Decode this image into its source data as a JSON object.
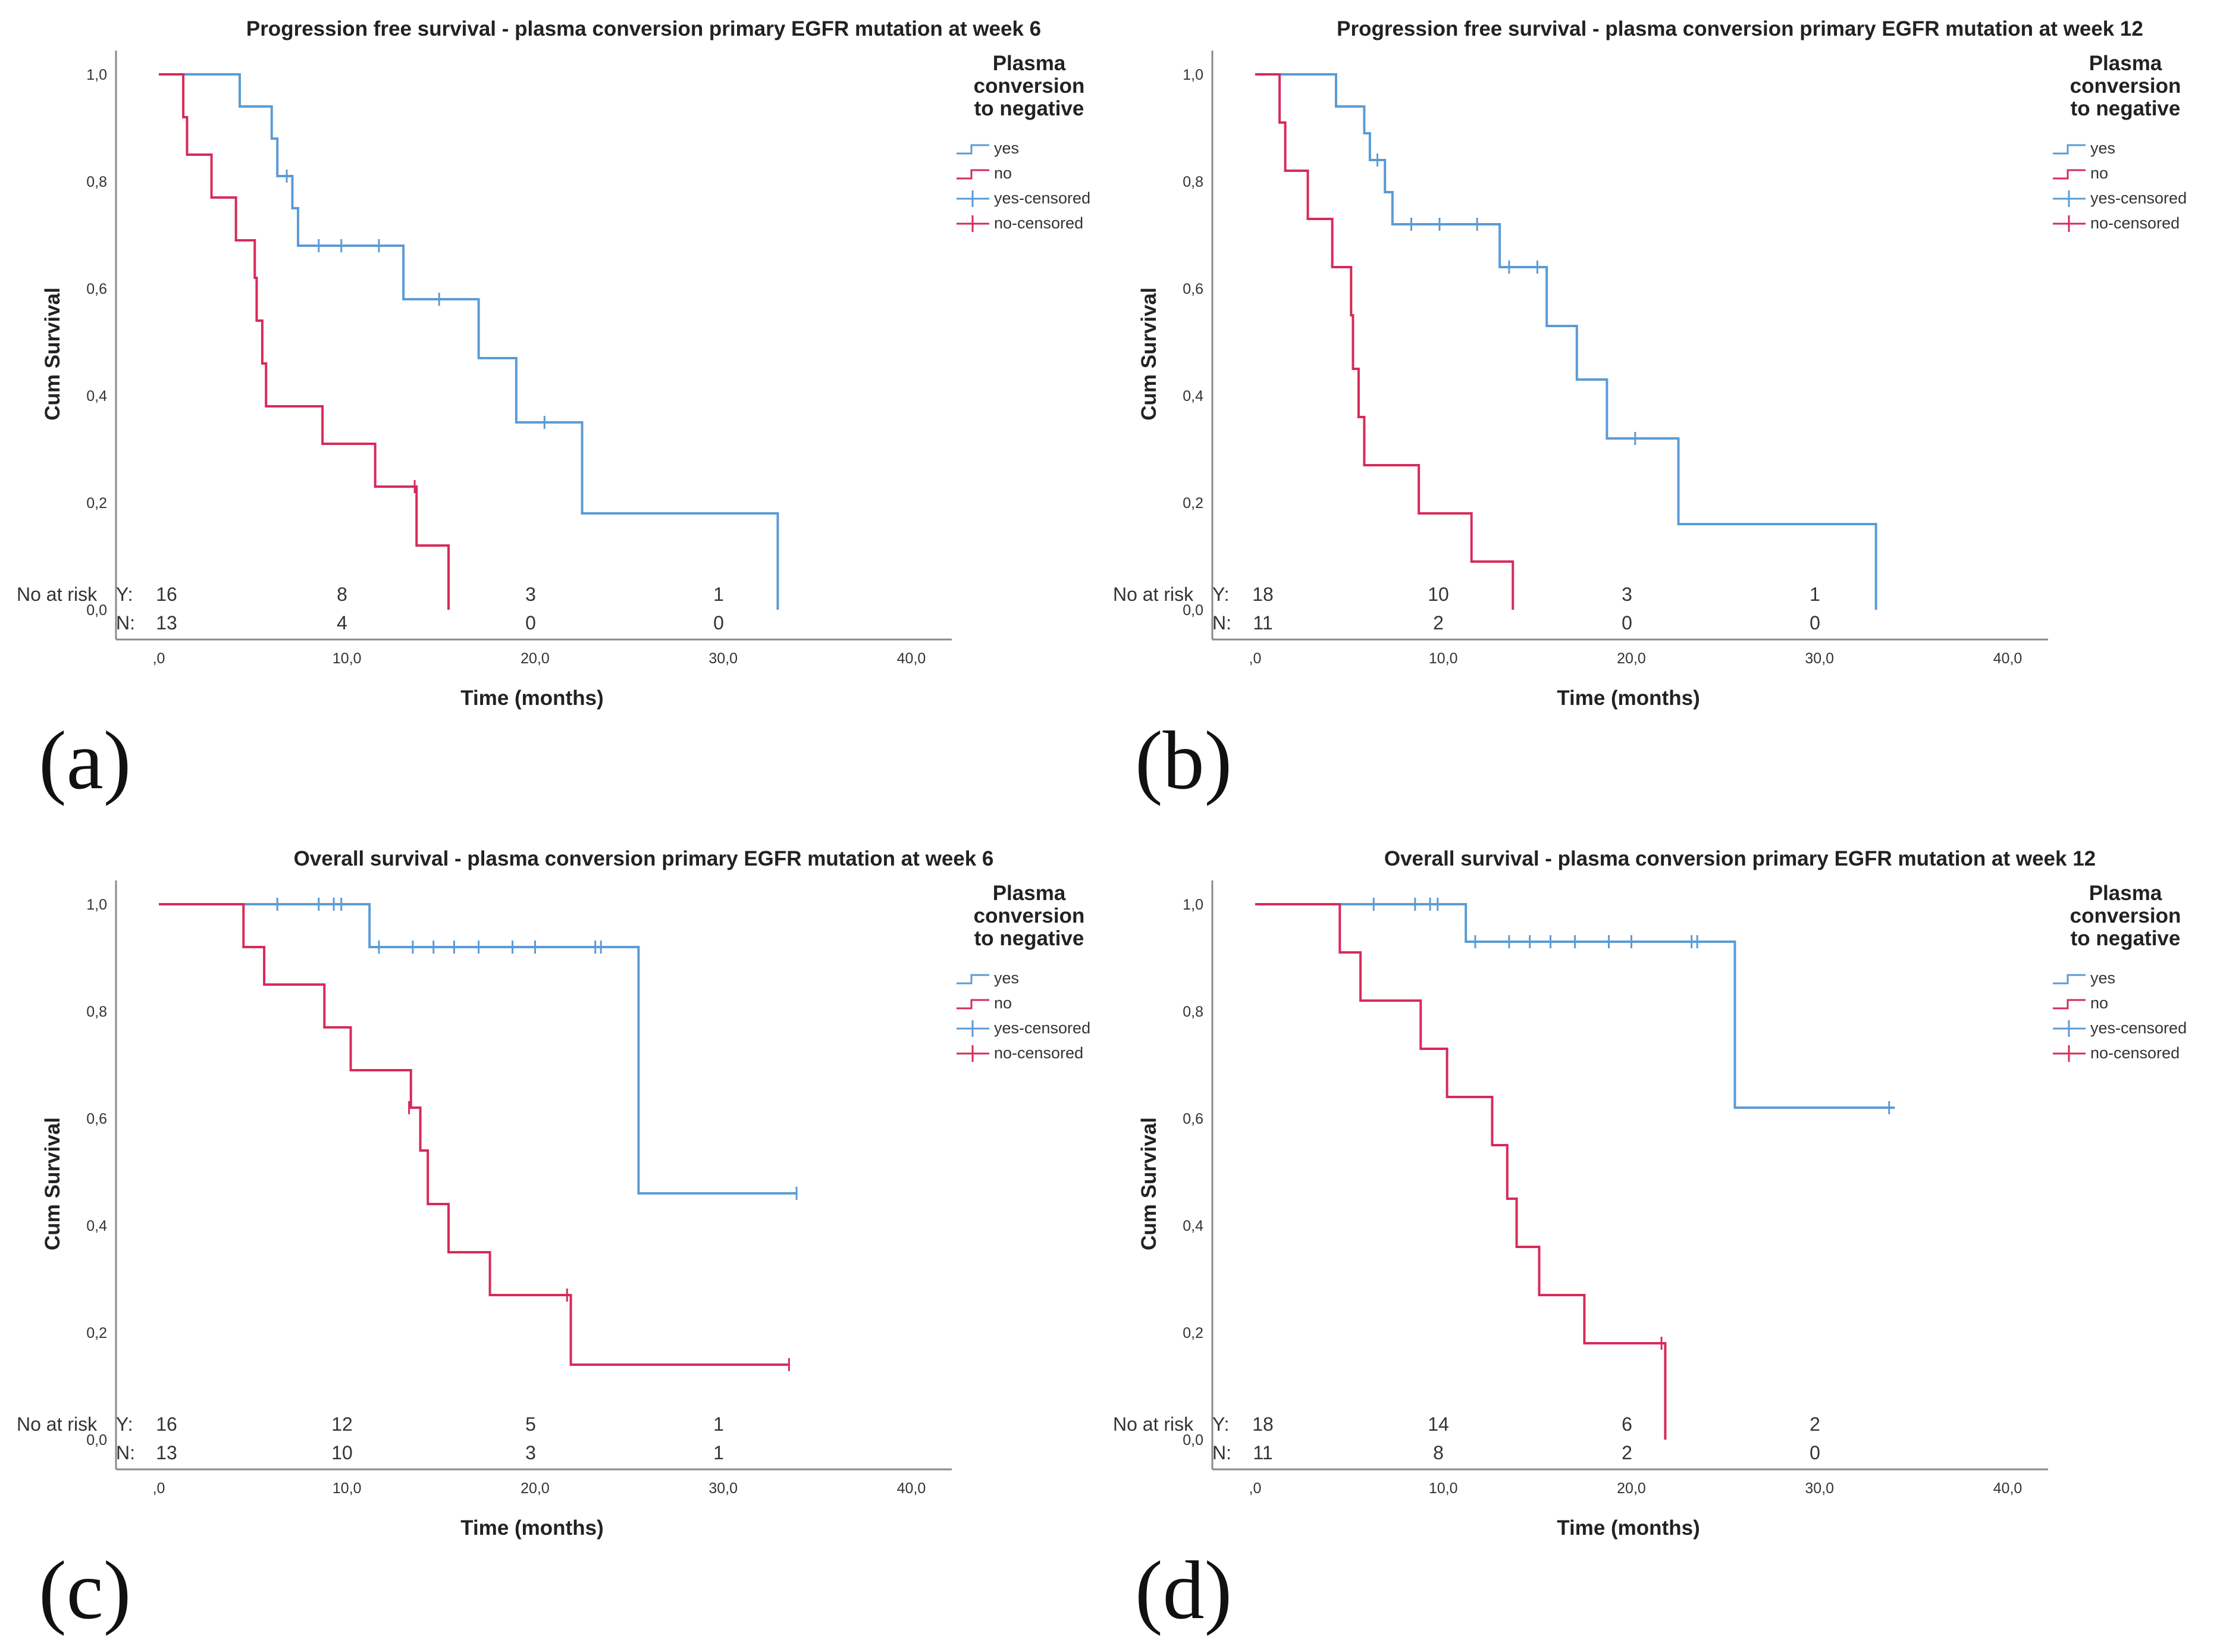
{
  "colors": {
    "yes": "#5b9bd5",
    "no": "#d62b5a",
    "axis": "#8a8a8a",
    "text": "#222222"
  },
  "legend": {
    "title_lines": [
      "Plasma",
      "conversion",
      "to negative"
    ],
    "items": [
      "yes",
      "no",
      "yes-censored",
      "no-censored"
    ]
  },
  "chart_data": [
    {
      "type": "line",
      "label": "(a)",
      "title": "Progression free survival - plasma conversion primary EGFR mutation at week 6",
      "xlabel": "Time (months)",
      "ylabel": "Cum Survival",
      "xlim": [
        0,
        40
      ],
      "ylim": [
        0,
        1
      ],
      "x_ticks": [
        ",0",
        "10,0",
        "20,0",
        "30,0",
        "40,0"
      ],
      "y_ticks": [
        "0,0",
        "0,2",
        "0,4",
        "0,6",
        "0,8",
        "1,0"
      ],
      "series": [
        {
          "name": "yes",
          "steps": [
            [
              0,
              1.0
            ],
            [
              4.3,
              0.94
            ],
            [
              6.0,
              0.88
            ],
            [
              6.3,
              0.81
            ],
            [
              7.1,
              0.75
            ],
            [
              7.4,
              0.68
            ],
            [
              13.0,
              0.58
            ],
            [
              17.0,
              0.47
            ],
            [
              19.0,
              0.35
            ],
            [
              22.5,
              0.18
            ],
            [
              32.9,
              0.0
            ]
          ],
          "end_x": 32.9,
          "censored": [
            [
              6.8,
              0.81
            ],
            [
              8.5,
              0.68
            ],
            [
              9.7,
              0.68
            ],
            [
              11.7,
              0.68
            ],
            [
              14.9,
              0.58
            ],
            [
              20.5,
              0.35
            ]
          ]
        },
        {
          "name": "no",
          "steps": [
            [
              0,
              1.0
            ],
            [
              1.3,
              0.92
            ],
            [
              1.5,
              0.85
            ],
            [
              2.8,
              0.77
            ],
            [
              4.1,
              0.69
            ],
            [
              5.1,
              0.62
            ],
            [
              5.2,
              0.54
            ],
            [
              5.5,
              0.46
            ],
            [
              5.7,
              0.38
            ],
            [
              8.7,
              0.31
            ],
            [
              11.5,
              0.23
            ],
            [
              13.7,
              0.12
            ],
            [
              15.4,
              0.0
            ]
          ],
          "end_x": 15.4,
          "censored": [
            [
              13.6,
              0.23
            ]
          ]
        }
      ],
      "risk_table": {
        "header": "No at risk",
        "rows": [
          {
            "label": "Y:",
            "values": [
              "16",
              "8",
              "3",
              "1"
            ]
          },
          {
            "label": "N:",
            "values": [
              "13",
              "4",
              "0",
              "0"
            ]
          }
        ]
      }
    },
    {
      "type": "line",
      "label": "(b)",
      "title": "Progression free survival - plasma conversion primary EGFR mutation at week 12",
      "xlabel": "Time (months)",
      "ylabel": "Cum Survival",
      "xlim": [
        0,
        40
      ],
      "ylim": [
        0,
        1
      ],
      "x_ticks": [
        ",0",
        "10,0",
        "20,0",
        "30,0",
        "40,0"
      ],
      "y_ticks": [
        "0,0",
        "0,2",
        "0,4",
        "0,6",
        "0,8",
        "1,0"
      ],
      "series": [
        {
          "name": "yes",
          "steps": [
            [
              0,
              1.0
            ],
            [
              4.3,
              0.94
            ],
            [
              5.8,
              0.89
            ],
            [
              6.1,
              0.84
            ],
            [
              6.9,
              0.78
            ],
            [
              7.3,
              0.72
            ],
            [
              13.0,
              0.64
            ],
            [
              15.5,
              0.53
            ],
            [
              17.1,
              0.43
            ],
            [
              18.7,
              0.32
            ],
            [
              22.5,
              0.16
            ],
            [
              33.0,
              0.0
            ]
          ],
          "end_x": 33.0,
          "censored": [
            [
              6.5,
              0.84
            ],
            [
              8.3,
              0.72
            ],
            [
              9.8,
              0.72
            ],
            [
              11.8,
              0.72
            ],
            [
              13.5,
              0.64
            ],
            [
              15.0,
              0.64
            ],
            [
              20.2,
              0.32
            ]
          ]
        },
        {
          "name": "no",
          "steps": [
            [
              0,
              1.0
            ],
            [
              1.3,
              0.91
            ],
            [
              1.6,
              0.82
            ],
            [
              2.8,
              0.73
            ],
            [
              4.1,
              0.64
            ],
            [
              5.1,
              0.55
            ],
            [
              5.2,
              0.45
            ],
            [
              5.5,
              0.36
            ],
            [
              5.8,
              0.27
            ],
            [
              8.7,
              0.18
            ],
            [
              11.5,
              0.09
            ],
            [
              13.7,
              0.0
            ]
          ],
          "end_x": 13.7,
          "censored": []
        }
      ],
      "risk_table": {
        "header": "No at risk",
        "rows": [
          {
            "label": "Y:",
            "values": [
              "18",
              "10",
              "3",
              "1"
            ]
          },
          {
            "label": "N:",
            "values": [
              "11",
              "2",
              "0",
              "0"
            ]
          }
        ]
      }
    },
    {
      "type": "line",
      "label": "(c)",
      "title": "Overall survival - plasma conversion primary EGFR mutation at week 6",
      "xlabel": "Time (months)",
      "ylabel": "Cum Survival",
      "xlim": [
        0,
        40
      ],
      "ylim": [
        0,
        1
      ],
      "x_ticks": [
        ",0",
        "10,0",
        "20,0",
        "30,0",
        "40,0"
      ],
      "y_ticks": [
        "0,0",
        "0,2",
        "0,4",
        "0,6",
        "0,8",
        "1,0"
      ],
      "series": [
        {
          "name": "yes",
          "steps": [
            [
              0,
              1.0
            ],
            [
              11.2,
              0.92
            ],
            [
              25.5,
              0.46
            ]
          ],
          "end_x": 33.9,
          "censored": [
            [
              6.3,
              1.0
            ],
            [
              8.5,
              1.0
            ],
            [
              9.3,
              1.0
            ],
            [
              9.7,
              1.0
            ],
            [
              11.7,
              0.92
            ],
            [
              13.5,
              0.92
            ],
            [
              14.6,
              0.92
            ],
            [
              15.7,
              0.92
            ],
            [
              17.0,
              0.92
            ],
            [
              18.8,
              0.92
            ],
            [
              20.0,
              0.92
            ],
            [
              23.2,
              0.92
            ],
            [
              23.5,
              0.92
            ],
            [
              33.9,
              0.46
            ]
          ]
        },
        {
          "name": "no",
          "steps": [
            [
              0,
              1.0
            ],
            [
              4.5,
              0.92
            ],
            [
              5.6,
              0.85
            ],
            [
              8.8,
              0.77
            ],
            [
              10.2,
              0.69
            ],
            [
              13.4,
              0.62
            ],
            [
              13.9,
              0.54
            ],
            [
              14.3,
              0.44
            ],
            [
              15.4,
              0.35
            ],
            [
              17.6,
              0.27
            ],
            [
              21.9,
              0.14
            ]
          ],
          "end_x": 33.5,
          "censored": [
            [
              13.3,
              0.62
            ],
            [
              21.7,
              0.27
            ],
            [
              33.5,
              0.14
            ]
          ]
        }
      ],
      "risk_table": {
        "header": "No at risk",
        "rows": [
          {
            "label": "Y:",
            "values": [
              "16",
              "12",
              "5",
              "1"
            ]
          },
          {
            "label": "N:",
            "values": [
              "13",
              "10",
              "3",
              "1"
            ]
          }
        ]
      }
    },
    {
      "type": "line",
      "label": "(d)",
      "title": "Overall survival  - plasma conversion primary EGFR mutation at week 12",
      "xlabel": "Time (months)",
      "ylabel": "Cum Survival",
      "xlim": [
        0,
        40
      ],
      "ylim": [
        0,
        1
      ],
      "x_ticks": [
        ",0",
        "10,0",
        "20,0",
        "30,0",
        "40,0"
      ],
      "y_ticks": [
        "0,0",
        "0,2",
        "0,4",
        "0,6",
        "0,8",
        "1,0"
      ],
      "series": [
        {
          "name": "yes",
          "steps": [
            [
              0,
              1.0
            ],
            [
              11.2,
              0.93
            ],
            [
              25.5,
              0.62
            ]
          ],
          "end_x": 34.0,
          "censored": [
            [
              6.3,
              1.0
            ],
            [
              8.5,
              1.0
            ],
            [
              9.3,
              1.0
            ],
            [
              9.7,
              1.0
            ],
            [
              11.7,
              0.93
            ],
            [
              13.5,
              0.93
            ],
            [
              14.6,
              0.93
            ],
            [
              15.7,
              0.93
            ],
            [
              17.0,
              0.93
            ],
            [
              18.8,
              0.93
            ],
            [
              20.0,
              0.93
            ],
            [
              23.2,
              0.93
            ],
            [
              23.5,
              0.93
            ],
            [
              33.7,
              0.62
            ]
          ]
        },
        {
          "name": "no",
          "steps": [
            [
              0,
              1.0
            ],
            [
              4.5,
              0.91
            ],
            [
              5.6,
              0.82
            ],
            [
              8.8,
              0.73
            ],
            [
              10.2,
              0.64
            ],
            [
              12.6,
              0.55
            ],
            [
              13.4,
              0.45
            ],
            [
              13.9,
              0.36
            ],
            [
              15.1,
              0.27
            ],
            [
              17.5,
              0.18
            ],
            [
              21.8,
              0.0
            ]
          ],
          "end_x": 21.8,
          "censored": [
            [
              21.6,
              0.18
            ]
          ]
        }
      ],
      "risk_table": {
        "header": "No at risk",
        "rows": [
          {
            "label": "Y:",
            "values": [
              "18",
              "14",
              "6",
              "2"
            ]
          },
          {
            "label": "N:",
            "values": [
              "11",
              "8",
              "2",
              "0"
            ]
          }
        ]
      }
    }
  ]
}
